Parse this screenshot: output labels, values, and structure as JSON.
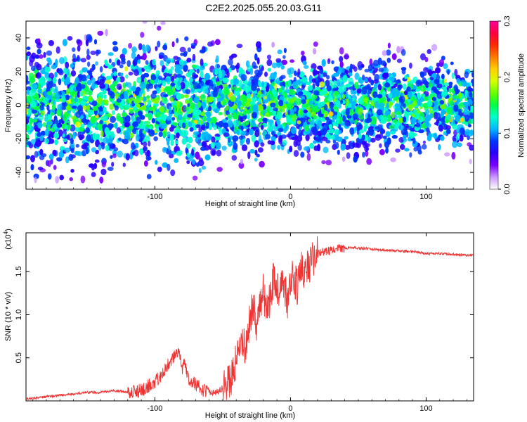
{
  "title": "C2E2.2025.055.20.03.G11",
  "chart_data": [
    {
      "type": "heatmap",
      "xlabel": "Height of straight line (km)",
      "ylabel": "Frequency (Hz)",
      "xlim": [
        -195,
        135
      ],
      "ylim": [
        -50,
        50
      ],
      "xticks": [
        -100,
        0,
        100
      ],
      "xtick_labels": [
        "-100",
        "0",
        "100"
      ],
      "yticks": [
        -40,
        -20,
        0,
        20,
        40
      ],
      "ytick_labels": [
        "-40",
        "-20",
        "0",
        "20",
        "40"
      ],
      "colorbar": {
        "label": "Normalized spectral amplitude",
        "range": [
          0.0,
          0.3
        ],
        "ticks": [
          0.0,
          0.1,
          0.2,
          0.3
        ],
        "tick_labels": [
          "0.0",
          "0.1",
          "0.2",
          "0.3"
        ],
        "colors": [
          "#ffffff",
          "#cc99ff",
          "#7a00ff",
          "#2a00ff",
          "#0033ff",
          "#00b7ff",
          "#00ffcc",
          "#00ff44",
          "#66ff00",
          "#d8ff00",
          "#ffd000",
          "#ff7a00",
          "#ff2a00",
          "#ff0044",
          "#ff0099"
        ]
      },
      "description": "Spectrogram: energy concentrated between about -35 and 35 Hz, strongest (cyan/green patches) near 0 Hz; wider and more intense spread for heights below about -50 km, narrower to about ±30 Hz above 0 km.",
      "grid": false
    },
    {
      "type": "line",
      "xlabel": "Height of straight line (km)",
      "ylabel": "SNR (10 * v/v)",
      "y_multiplier_label": "(x10",
      "y_multiplier_exp": "4",
      "y_multiplier_close": ")",
      "xlim": [
        -195,
        135
      ],
      "ylim": [
        0.0,
        1.95
      ],
      "xticks": [
        -100,
        0,
        100
      ],
      "xtick_labels": [
        "-100",
        "0",
        "100"
      ],
      "yticks": [
        0.5,
        1.0,
        1.5
      ],
      "ytick_labels": [
        "0.5",
        "1.0",
        "1.5"
      ],
      "line_color": "#ee3333",
      "series": [
        {
          "x": [
            -195,
            -180,
            -165,
            -150,
            -140,
            -130,
            -120,
            -110,
            -100,
            -95,
            -90,
            -85,
            -82,
            -80,
            -78,
            -75,
            -70,
            -65,
            -60,
            -55,
            -50,
            -45,
            -42,
            -40,
            -38,
            -35,
            -33,
            -30,
            -28,
            -25,
            -22,
            -20,
            -18,
            -15,
            -12,
            -10,
            -8,
            -5,
            -2,
            0,
            2,
            5,
            8,
            10,
            12,
            15,
            18,
            20,
            25,
            30,
            35,
            40,
            45,
            50,
            55,
            60,
            70,
            80,
            90,
            100,
            110,
            120,
            130,
            135
          ],
          "y": [
            0.02,
            0.05,
            0.07,
            0.1,
            0.1,
            0.12,
            0.1,
            0.12,
            0.22,
            0.3,
            0.42,
            0.55,
            0.6,
            0.35,
            0.45,
            0.25,
            0.2,
            0.12,
            0.1,
            0.1,
            0.15,
            0.22,
            0.35,
            0.45,
            0.55,
            0.7,
            0.62,
            0.95,
            1.1,
            0.9,
            1.15,
            1.3,
            1.05,
            1.2,
            1.45,
            1.35,
            1.25,
            1.4,
            1.1,
            1.35,
            1.45,
            1.3,
            1.55,
            1.5,
            1.55,
            1.6,
            1.68,
            1.7,
            1.73,
            1.75,
            1.77,
            1.77,
            1.78,
            1.77,
            1.77,
            1.76,
            1.75,
            1.74,
            1.73,
            1.71,
            1.71,
            1.7,
            1.69,
            1.69
          ]
        }
      ],
      "grid": false
    }
  ]
}
